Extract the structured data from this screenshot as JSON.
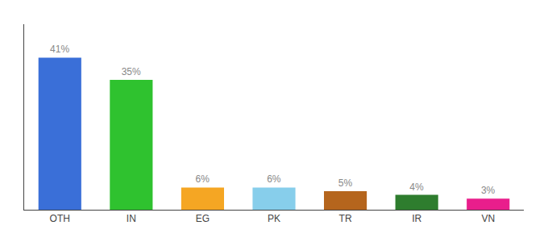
{
  "chart_data": {
    "type": "bar",
    "categories": [
      "OTH",
      "IN",
      "EG",
      "PK",
      "TR",
      "IR",
      "VN"
    ],
    "values": [
      41,
      35,
      6,
      6,
      5,
      4,
      3
    ],
    "value_labels": [
      "41%",
      "35%",
      "6%",
      "6%",
      "5%",
      "4%",
      "3%"
    ],
    "colors": [
      "#3a6fd8",
      "#2fc22f",
      "#f5a623",
      "#87ceeb",
      "#b5651d",
      "#2e7d2e",
      "#e91e8c"
    ],
    "ylim": [
      0,
      50
    ],
    "data_labels": true,
    "tick_labels": "x",
    "grid": false
  }
}
